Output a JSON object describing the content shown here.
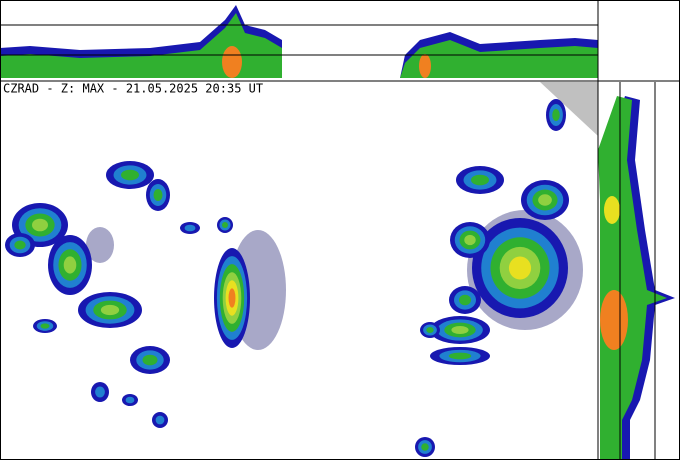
{
  "header": {
    "title": "CZRAD - Z: MAX - 21.05.2025 20:35 UT"
  }
}
